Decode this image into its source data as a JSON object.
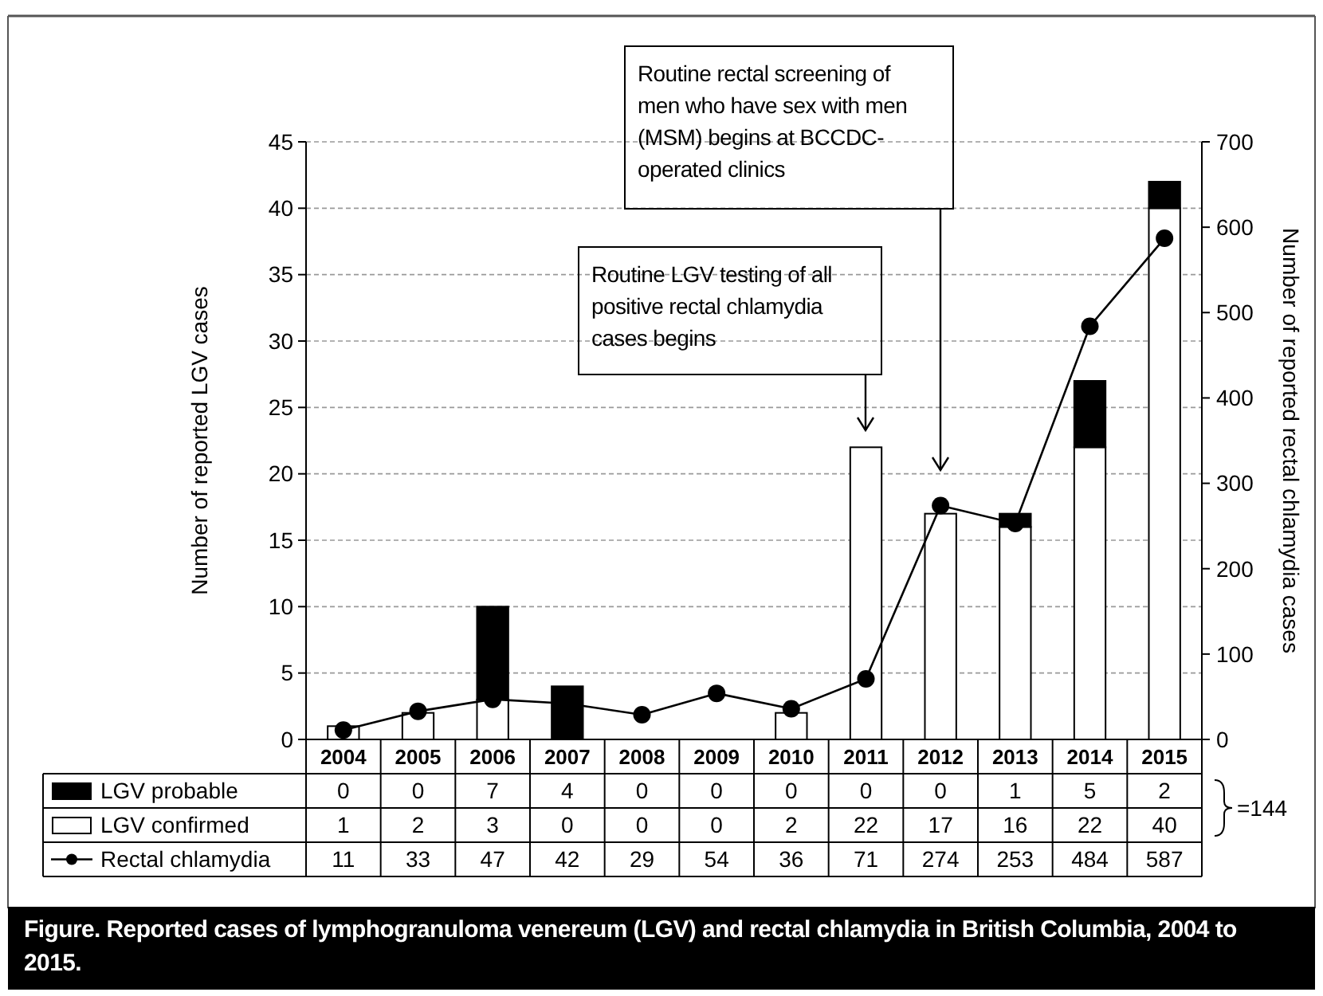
{
  "chart_data": {
    "type": "bar",
    "title": "Figure. Reported cases of lymphogranuloma venereum (LGV) and rectal chlamydia in British Columbia, 2004 to 2015.",
    "ylabel": "Number of reported LGV cases",
    "y2label": "Number of reported rectal chlamydia cases",
    "categories": [
      "2004",
      "2005",
      "2006",
      "2007",
      "2008",
      "2009",
      "2010",
      "2011",
      "2012",
      "2013",
      "2014",
      "2015"
    ],
    "stacked": true,
    "series": [
      {
        "name": "LGV confirmed",
        "color": "#ffffff",
        "values": [
          1,
          2,
          3,
          0,
          0,
          0,
          2,
          22,
          17,
          16,
          22,
          40
        ]
      },
      {
        "name": "LGV probable",
        "color": "#000000",
        "values": [
          0,
          0,
          7,
          4,
          0,
          0,
          0,
          0,
          0,
          1,
          5,
          2
        ]
      },
      {
        "name": "Rectal chlamydia",
        "type": "line",
        "axis": "y2",
        "color": "#000000",
        "marker": "circle",
        "line_style": "solid",
        "values": [
          11,
          33,
          47,
          42,
          29,
          54,
          36,
          71,
          274,
          253,
          484,
          587
        ]
      }
    ],
    "ylim": [
      0,
      45
    ],
    "yticks": [
      0,
      5,
      10,
      15,
      20,
      25,
      30,
      35,
      40,
      45
    ],
    "y2lim": [
      0,
      700
    ],
    "y2ticks": [
      0,
      100,
      200,
      300,
      400,
      500,
      600,
      700
    ],
    "grid": "y",
    "legend": "bottom",
    "data_labels": true,
    "annotations": [
      "Routine LGV testing of all positive rectal chlamydia cases begins",
      "Routine rectal screening of  men who have sex with men (MSM) begins at BCCDC-operated clinics",
      "=144"
    ]
  }
}
